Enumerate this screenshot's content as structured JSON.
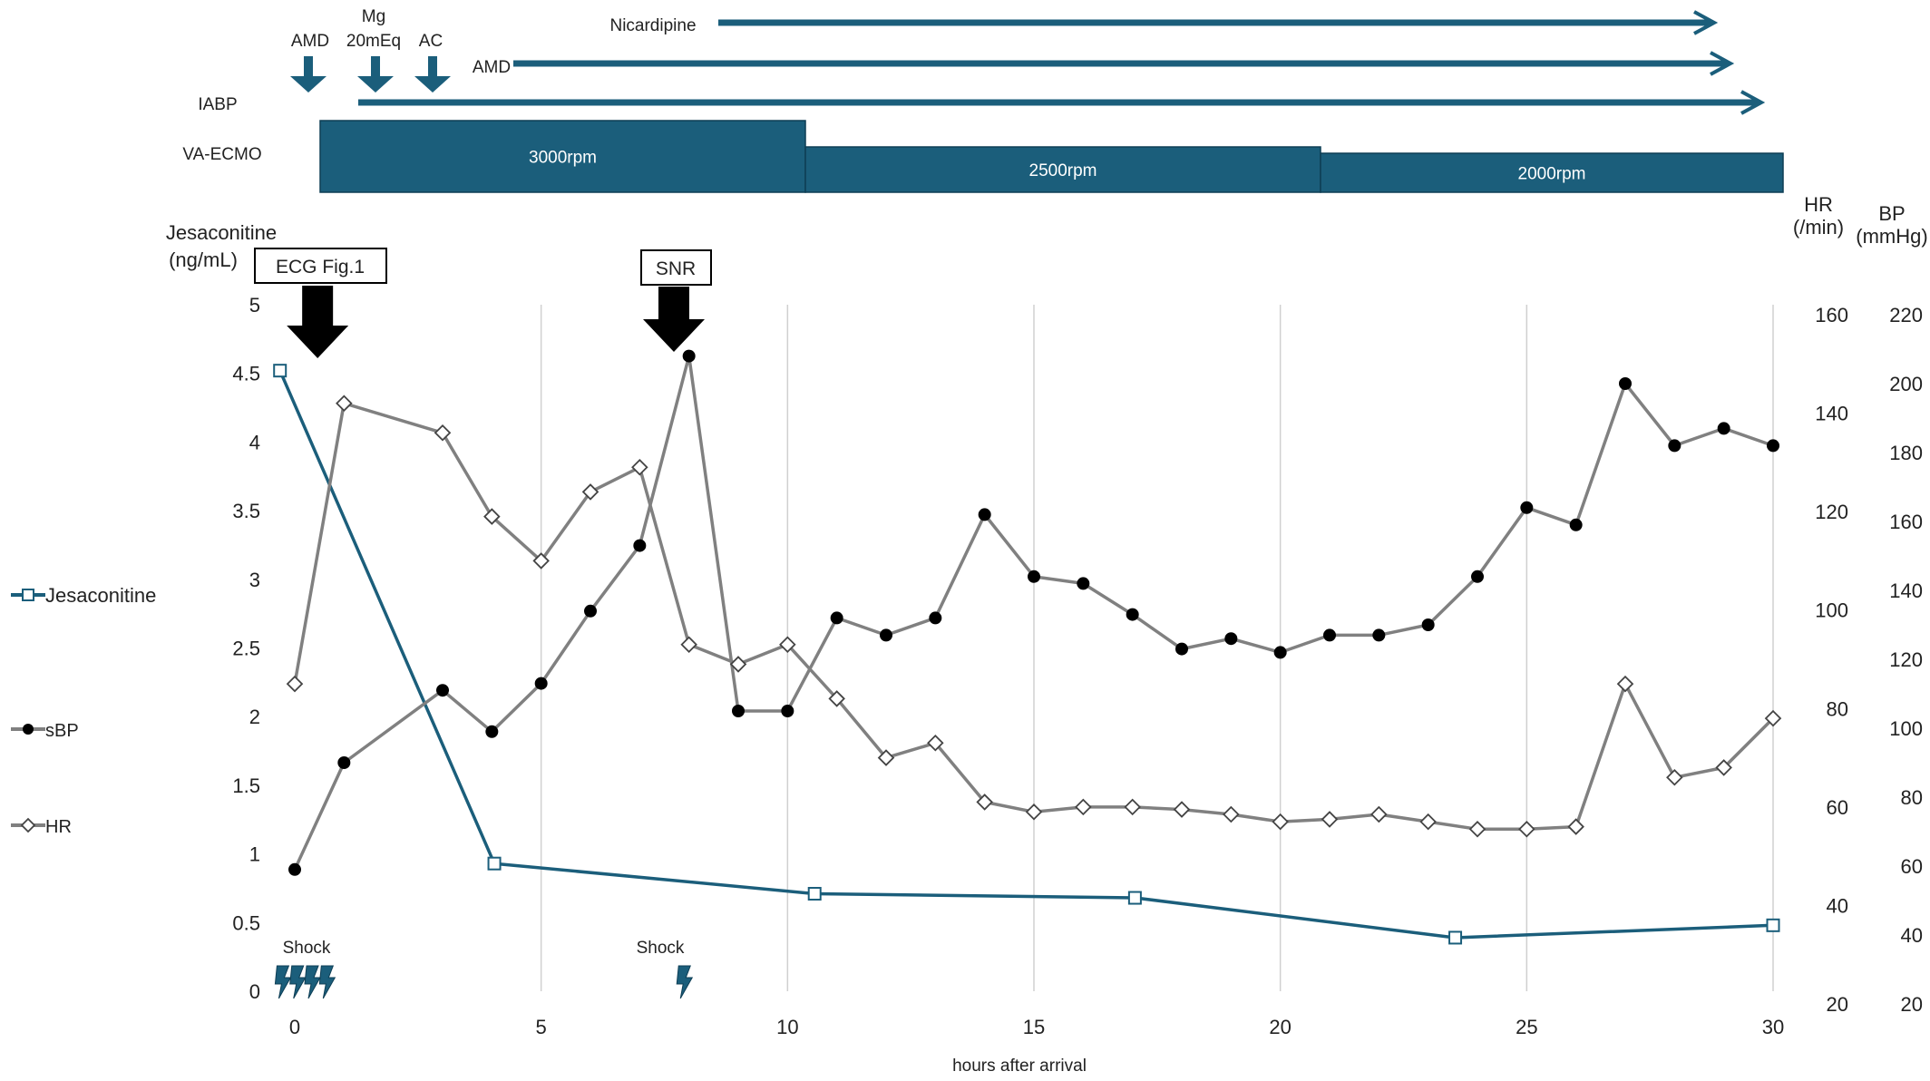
{
  "chart_data": {
    "type": "line",
    "xlabel": "hours after arrival",
    "x_ticks": [
      0,
      5,
      10,
      15,
      20,
      25,
      30
    ],
    "xlim": [
      0,
      30
    ],
    "left_axis": {
      "title_line1": "Jesaconitine",
      "title_line2": "(ng/mL)",
      "range": [
        0,
        5
      ],
      "ticks": [
        "0",
        "0.5",
        "1",
        "1.5",
        "2",
        "2.5",
        "3",
        "3.5",
        "4",
        "4.5",
        "5"
      ]
    },
    "hr_axis": {
      "title_line1": "HR",
      "title_line2": "(/min)",
      "range": [
        20,
        160
      ],
      "ticks": [
        "20",
        "40",
        "60",
        "80",
        "100",
        "120",
        "140",
        "160"
      ]
    },
    "bp_axis": {
      "title_line1": "BP",
      "title_line2": "(mmHg)",
      "range": [
        20,
        220
      ],
      "ticks": [
        "20",
        "40",
        "60",
        "80",
        "100",
        "120",
        "140",
        "160",
        "180",
        "200",
        "220"
      ]
    },
    "series": [
      {
        "name": "Jesaconitine",
        "axis": "left",
        "marker": "square",
        "color": "#1b5e7b",
        "x": [
          -0.3,
          4.05,
          10.55,
          17.05,
          23.55,
          30.0
        ],
        "y": [
          4.52,
          0.93,
          0.71,
          0.68,
          0.39,
          0.48
        ]
      },
      {
        "name": "sBP",
        "axis": "bp",
        "marker": "filled-circle",
        "color": "#808080",
        "x": [
          0,
          1,
          3,
          4,
          5,
          6,
          7,
          8,
          9,
          10,
          11,
          12,
          13,
          14,
          15,
          16,
          17,
          18,
          19,
          20,
          21,
          22,
          23,
          24,
          25,
          26,
          27,
          28,
          29,
          30
        ],
        "y": [
          59,
          90,
          111,
          99,
          113,
          134,
          153,
          208,
          105,
          105,
          132,
          127,
          132,
          162,
          144,
          142,
          133,
          123,
          126,
          122,
          127,
          127,
          130,
          144,
          164,
          159,
          200,
          182,
          187,
          182
        ]
      },
      {
        "name": "HR",
        "axis": "hr",
        "marker": "open-diamond",
        "color": "#808080",
        "x": [
          0,
          1,
          3,
          4,
          5,
          6,
          7,
          8,
          9,
          10,
          11,
          12,
          13,
          14,
          15,
          16,
          17,
          18,
          19,
          20,
          21,
          22,
          23,
          24,
          25,
          26,
          27,
          28,
          29,
          30
        ],
        "y": [
          85,
          142,
          136,
          119,
          110,
          124,
          129,
          93,
          89,
          93,
          82,
          70,
          73,
          61,
          59,
          60,
          60,
          59.5,
          58.5,
          57,
          57.5,
          58.5,
          57,
          55.5,
          55.5,
          56,
          85,
          66,
          68,
          78
        ]
      }
    ],
    "markers": [
      {
        "label": "ECG Fig.1",
        "x": 0.5
      },
      {
        "label": "SNR",
        "x": 7.75
      }
    ],
    "shock_events": [
      {
        "label": "Shock",
        "x": [
          -0.25,
          0.05,
          0.35,
          0.65
        ]
      },
      {
        "label": "Shock",
        "x": [
          7.9
        ]
      }
    ],
    "drugs": [
      {
        "label": "AMD",
        "type": "down-arrow",
        "x": 0.3
      },
      {
        "label": "Mg",
        "label2": "20mEq",
        "type": "down-arrow",
        "x": 1.6
      },
      {
        "label": "AC",
        "type": "down-arrow",
        "x": 2.8
      },
      {
        "label": "Nicardipine",
        "type": "span",
        "start": 8.5,
        "end": 29.0
      },
      {
        "label": "AMD",
        "type": "span",
        "start": 4.4,
        "end": 29.4
      },
      {
        "label": "IABP",
        "type": "span",
        "start": 1.2,
        "end": 30.0
      }
    ],
    "ecmo": {
      "label": "VA-ECMO",
      "segments": [
        {
          "label": "3000rpm",
          "start": 0.3,
          "end": 10.3
        },
        {
          "label": "2500rpm",
          "start": 10.3,
          "end": 20.8
        },
        {
          "label": "2000rpm",
          "start": 20.8,
          "end": 30.2
        }
      ]
    },
    "grid": "vertical"
  },
  "colors": {
    "teal": "#1b5e7b",
    "gray": "#808080",
    "grid": "#d0d0d0",
    "text": "#222222"
  }
}
